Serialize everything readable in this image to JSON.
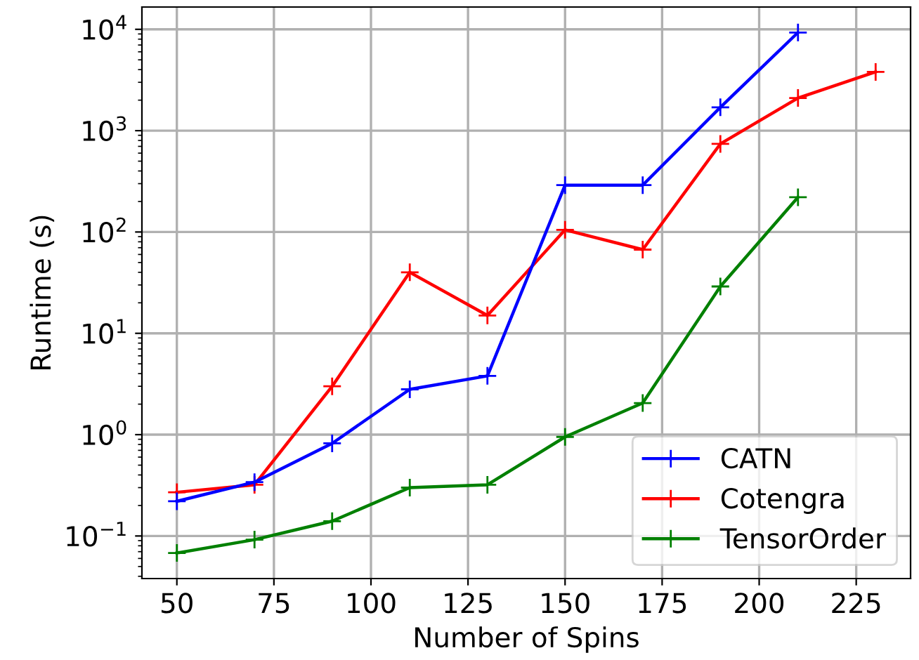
{
  "chart_data": {
    "type": "line",
    "xlabel": "Number of Spins",
    "ylabel": "Runtime (s)",
    "log": "y",
    "grid": true,
    "legend": "bottom right",
    "marker": "cross",
    "line_style": "solid",
    "xlim": [
      41,
      239
    ],
    "xticks": [
      50,
      75,
      100,
      125,
      150,
      175,
      200,
      225
    ],
    "ylim": [
      0.038,
      16600
    ],
    "yticks": [
      {
        "value": 0.1,
        "label": "10$^{−1}$"
      },
      {
        "value": 1,
        "label": "10$^{0}$"
      },
      {
        "value": 10,
        "label": "10$^{1}$"
      },
      {
        "value": 100,
        "label": "10$^{2}$"
      },
      {
        "value": 1000,
        "label": "10$^{3}$"
      },
      {
        "value": 10000,
        "label": "10$^{4}$"
      }
    ],
    "series": [
      {
        "name": "CATN",
        "color": "#0000ff",
        "x": [
          50,
          70,
          90,
          110,
          130,
          150,
          170,
          190,
          210
        ],
        "values": [
          0.22,
          0.34,
          0.82,
          2.8,
          3.8,
          290,
          290,
          1700,
          9300
        ]
      },
      {
        "name": "Cotengra",
        "color": "#ff0000",
        "x": [
          50,
          70,
          90,
          110,
          130,
          150,
          170,
          190,
          210,
          230
        ],
        "values": [
          0.27,
          0.32,
          3.0,
          40,
          15,
          105,
          67,
          740,
          2100,
          3800
        ]
      },
      {
        "name": "TensorOrder",
        "color": "#008000",
        "x": [
          50,
          70,
          90,
          110,
          130,
          150,
          170,
          190,
          210
        ],
        "values": [
          0.068,
          0.092,
          0.14,
          0.3,
          0.32,
          0.95,
          2.05,
          29,
          220
        ]
      }
    ]
  }
}
